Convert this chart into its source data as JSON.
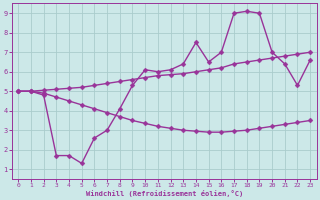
{
  "xlabel": "Windchill (Refroidissement éolien,°C)",
  "xlim": [
    -0.5,
    23.5
  ],
  "ylim": [
    0.5,
    9.5
  ],
  "xticks": [
    0,
    1,
    2,
    3,
    4,
    5,
    6,
    7,
    8,
    9,
    10,
    11,
    12,
    13,
    14,
    15,
    16,
    17,
    18,
    19,
    20,
    21,
    22,
    23
  ],
  "yticks": [
    1,
    2,
    3,
    4,
    5,
    6,
    7,
    8,
    9
  ],
  "bg_color": "#cce8e8",
  "grid_color": "#aacccc",
  "line_color": "#993399",
  "line_width": 1.0,
  "marker_size": 2.5,
  "series1_x": [
    0,
    1,
    2,
    3,
    4,
    5,
    6,
    7,
    8,
    9,
    10,
    11,
    12,
    13,
    14,
    15,
    16,
    17,
    18,
    19,
    20,
    21,
    22,
    23
  ],
  "series1_y": [
    5.0,
    5.0,
    4.8,
    1.7,
    1.7,
    1.3,
    2.6,
    3.0,
    4.1,
    5.3,
    6.1,
    6.0,
    6.1,
    6.4,
    7.5,
    6.5,
    7.0,
    9.0,
    9.1,
    9.0,
    7.0,
    6.4,
    5.3,
    6.6
  ],
  "series2_x": [
    0,
    1,
    2,
    3,
    4,
    5,
    6,
    7,
    8,
    9,
    10,
    11,
    12,
    13,
    14,
    15,
    16,
    17,
    18,
    19,
    20,
    21,
    22,
    23
  ],
  "series2_y": [
    5.0,
    5.0,
    5.05,
    5.1,
    5.15,
    5.2,
    5.3,
    5.4,
    5.5,
    5.6,
    5.7,
    5.8,
    5.85,
    5.9,
    6.0,
    6.1,
    6.2,
    6.4,
    6.5,
    6.6,
    6.7,
    6.8,
    6.9,
    7.0
  ],
  "series3_x": [
    0,
    1,
    2,
    3,
    4,
    5,
    6,
    7,
    8,
    9,
    10,
    11,
    12,
    13,
    14,
    15,
    16,
    17,
    18,
    19,
    20,
    21,
    22,
    23
  ],
  "series3_y": [
    5.0,
    5.0,
    4.9,
    4.7,
    4.5,
    4.3,
    4.1,
    3.9,
    3.7,
    3.5,
    3.35,
    3.2,
    3.1,
    3.0,
    2.95,
    2.9,
    2.9,
    2.95,
    3.0,
    3.1,
    3.2,
    3.3,
    3.4,
    3.5
  ]
}
